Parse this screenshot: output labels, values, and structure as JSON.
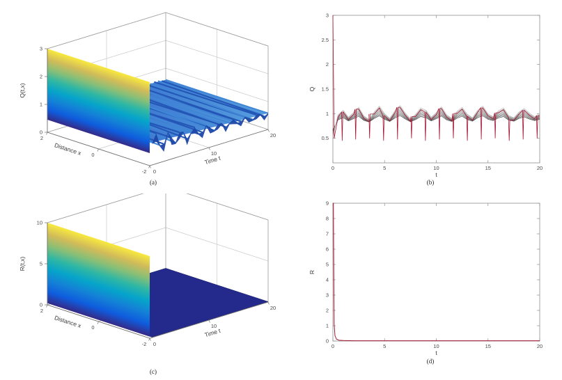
{
  "figure": {
    "background": "#ffffff",
    "captions": {
      "a": "(a)",
      "b": "(b)",
      "c": "(c)",
      "d": "(d)"
    }
  },
  "chart_data": [
    {
      "id": "a",
      "type": "surface",
      "zlabel": "Q(t,x)",
      "xlabel": "Distance x",
      "ylabel": "Time t",
      "xlim": [
        -2,
        2
      ],
      "ylim": [
        0,
        20
      ],
      "zlim": [
        0,
        3
      ],
      "x_ticks": [
        2,
        0,
        -2
      ],
      "y_ticks": [
        0,
        10,
        20
      ],
      "z_ticks": [
        0,
        1,
        2,
        3
      ],
      "description": "Q(0,x)=3 for all x (bright wall at t=0); the solution drops sharply then oscillates near Q~0.6-1 with rippled waves whose amplitude decays as t grows.",
      "colormap": [
        "#352a87",
        "#0f5cdd",
        "#1481d6",
        "#06a4ca",
        "#2eb7a4",
        "#87bf77",
        "#d1bb59",
        "#f9e93f"
      ],
      "wall": {
        "t": 0,
        "top_z": 3,
        "bottom_z": 0.45
      },
      "ripple": {
        "t_start": 0.45,
        "mean_z_start": 0.8,
        "mean_z_end": 0.58,
        "amp_z_start": 0.28,
        "amp_z_end": 0.05,
        "decay": 2.4,
        "count": 30,
        "cycles": 9
      },
      "surface_base": [
        "#2a5cc8",
        "#57a0de"
      ],
      "stripe_colors": [
        "#3f86d6",
        "#2356b6"
      ],
      "edge_color": "#1d48a8"
    },
    {
      "id": "b",
      "type": "line",
      "xlabel": "t",
      "ylabel": "Q",
      "xlim": [
        0,
        20
      ],
      "ylim": [
        0,
        3
      ],
      "x_ticks": [
        0,
        5,
        10,
        15,
        20
      ],
      "y_ticks": [
        0.5,
        1,
        1.5,
        2,
        2.5,
        3
      ],
      "description": "Time traces Q(t) at several x: start at Q=3 at t=0 (red), drop to ~0.9, then oscillate in a 0.8-1.1 band with sharp periodic red downward spikes to ~0.45.",
      "series": [
        {
          "name": "Q profiles at sampled x (gray bundle)",
          "color": "#8c8c8c"
        },
        {
          "name": "Q envelope with periodic spikes",
          "color": "#a2142f"
        }
      ],
      "initial_value": 3,
      "mean_dt": 0.5,
      "mean_q": [
        0.55,
        0.92,
        1.0,
        0.88,
        0.96,
        1.05,
        0.9,
        0.84,
        0.97,
        1.07,
        0.94,
        0.86,
        0.99,
        1.08,
        0.95,
        0.85,
        0.93,
        1.04,
        1.0,
        0.88,
        0.96,
        1.06,
        0.92,
        0.86,
        0.98,
        1.05,
        0.93,
        0.87,
        1.0,
        1.07,
        0.94,
        0.89,
        0.99,
        1.04,
        0.91,
        0.87,
        0.97,
        1.03,
        0.95,
        0.89,
        0.94
      ],
      "bundle_count": 8,
      "bundle_center": 0.96,
      "spike_times": [
        0.9,
        2.2,
        3.55,
        4.9,
        6.25,
        7.6,
        8.95,
        10.3,
        11.65,
        13.0,
        14.35,
        15.7,
        17.05,
        18.4,
        19.75
      ],
      "spike_low": 0.45,
      "line_color": "#a2142f",
      "bundle_color": "#8c8c8c"
    },
    {
      "id": "c",
      "type": "surface",
      "zlabel": "R(t,x)",
      "xlabel": "Distance x",
      "ylabel": "Time t",
      "xlim": [
        -2,
        2
      ],
      "ylim": [
        0,
        20
      ],
      "zlim": [
        0,
        10
      ],
      "x_ticks": [
        2,
        0,
        -2
      ],
      "y_ticks": [
        0,
        10,
        20
      ],
      "z_ticks": [
        0,
        5,
        10
      ],
      "description": "R(0,x)~10 at t=0 (bright gradient wall) collapsing immediately to R~0, a flat dark-blue plane for all t>0.",
      "colormap": [
        "#352a87",
        "#0f5cdd",
        "#1481d6",
        "#06a4ca",
        "#2eb7a4",
        "#87bf77",
        "#d1bb59",
        "#f9e93f"
      ],
      "wall": {
        "t": 0,
        "top_z": 10,
        "bottom_z": 0.2
      },
      "flat": {
        "z": 0.05,
        "color": "#232a8c"
      }
    },
    {
      "id": "d",
      "type": "line",
      "xlabel": "t",
      "ylabel": "R",
      "xlim": [
        0,
        20
      ],
      "ylim": [
        0,
        9
      ],
      "x_ticks": [
        0,
        5,
        10,
        15,
        20
      ],
      "y_ticks": [
        0,
        1,
        2,
        3,
        4,
        5,
        6,
        7,
        8,
        9
      ],
      "description": "R(t) starts at 9, collapses to ~0 almost instantly and remains 0 through t=20.",
      "series": [
        {
          "name": "R(t)",
          "color": "#a2142f"
        }
      ],
      "line_color": "#a2142f",
      "points": [
        [
          0,
          9
        ],
        [
          0.05,
          9
        ],
        [
          0.12,
          1.1
        ],
        [
          0.2,
          0.35
        ],
        [
          0.35,
          0.12
        ],
        [
          0.6,
          0.05
        ],
        [
          1,
          0.03
        ],
        [
          2,
          0.02
        ],
        [
          5,
          0.02
        ],
        [
          10,
          0.02
        ],
        [
          15,
          0.02
        ],
        [
          20,
          0.02
        ]
      ]
    }
  ]
}
